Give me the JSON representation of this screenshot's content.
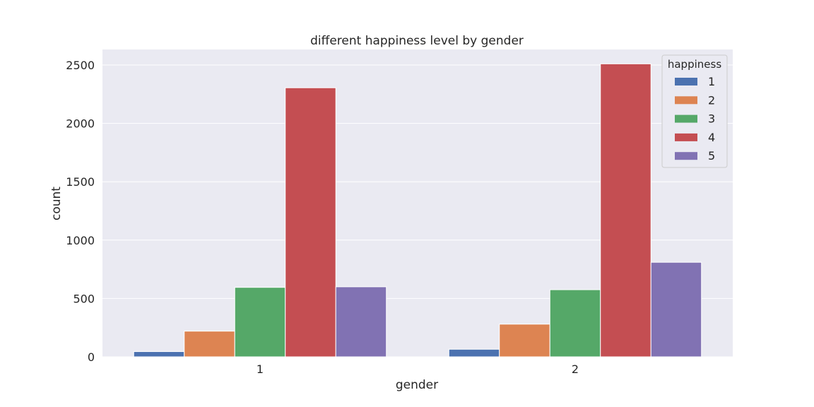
{
  "chart_data": {
    "type": "bar",
    "title": "different happiness level by gender",
    "xlabel": "gender",
    "ylabel": "count",
    "categories": [
      "1",
      "2"
    ],
    "ylim": [
      0,
      2650
    ],
    "yticks": [
      0,
      500,
      1000,
      1500,
      2000,
      2500
    ],
    "grid": true,
    "legend": {
      "title": "happiness",
      "placement": "top-right"
    },
    "series": [
      {
        "name": "1",
        "color": "#4c72b0",
        "values": [
          45,
          65
        ]
      },
      {
        "name": "2",
        "color": "#dd8452",
        "values": [
          220,
          280
        ]
      },
      {
        "name": "3",
        "color": "#55a868",
        "values": [
          595,
          575
        ]
      },
      {
        "name": "4",
        "color": "#c44e52",
        "values": [
          2305,
          2510
        ]
      },
      {
        "name": "5",
        "color": "#8172b3",
        "values": [
          600,
          810
        ]
      }
    ]
  }
}
